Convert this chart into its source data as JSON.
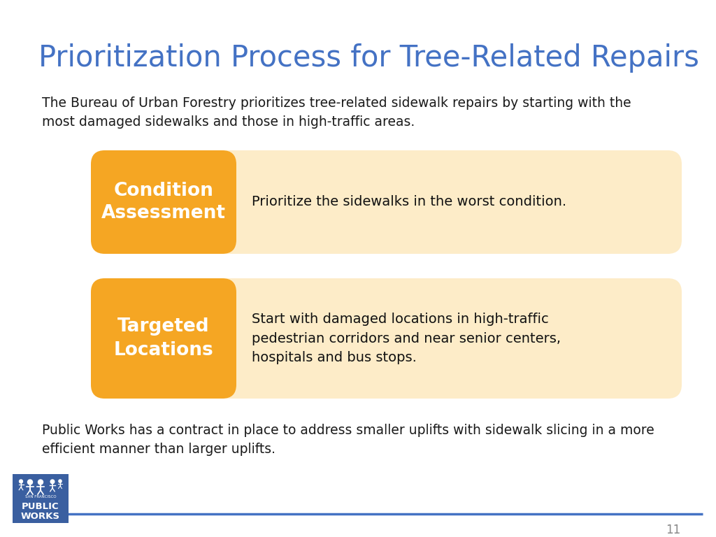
{
  "title": "Prioritization Process for Tree-Related Repairs",
  "title_color": "#4472C4",
  "title_fontsize": 30,
  "intro_text": "The Bureau of Urban Forestry prioritizes tree-related sidewalk repairs by starting with the\nmost damaged sidewalks and those in high-traffic areas.",
  "footer_text": "Public Works has a contract in place to address smaller uplifts with sidewalk slicing in a more\nefficient manner than larger uplifts.",
  "text_color": "#1a1a1a",
  "body_fontsize": 13.5,
  "page_number": "11",
  "boxes": [
    {
      "label": "Condition\nAssessment",
      "description": "Prioritize the sidewalks in the worst condition.",
      "orange_color": "#F5A623",
      "light_color": "#FDECC8"
    },
    {
      "label": "Targeted\nLocations",
      "description": "Start with damaged locations in high-traffic\npedestrian corridors and near senior centers,\nhospitals and bus stops.",
      "orange_color": "#F5A623",
      "light_color": "#FDECC8"
    }
  ],
  "line_color": "#4472C4",
  "background_color": "#FFFFFF",
  "logo_color": "#3A5FA0"
}
